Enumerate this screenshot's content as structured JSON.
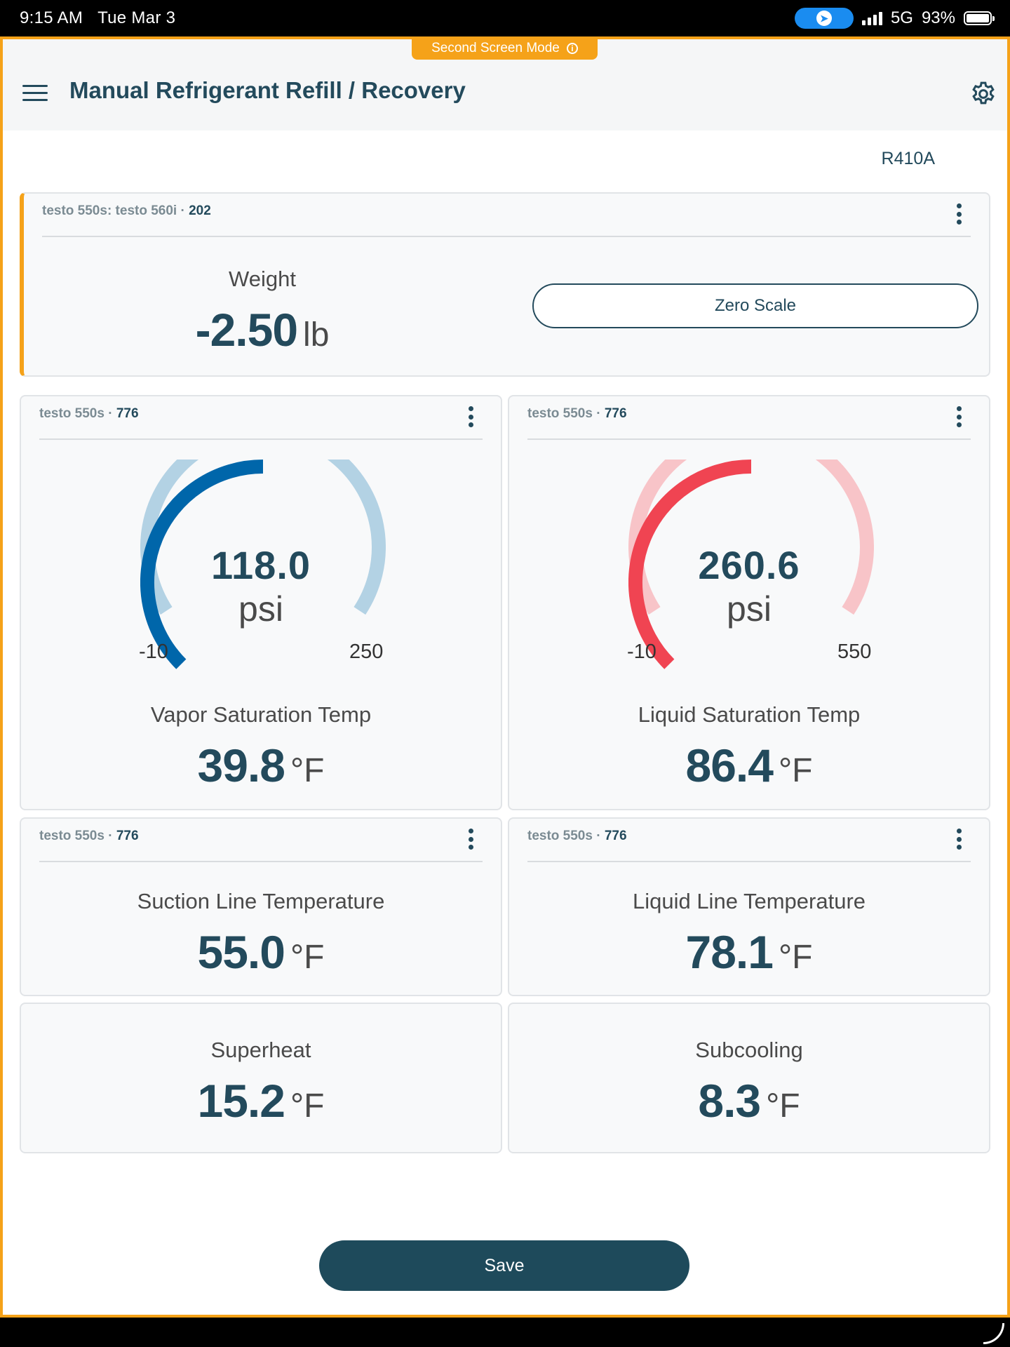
{
  "status_bar": {
    "time": "9:15 AM",
    "date": "Tue Mar 3",
    "network": "5G",
    "battery": "93%"
  },
  "banner": {
    "label": "Second Screen Mode",
    "info_icon": "info-icon"
  },
  "header": {
    "title": "Manual Refrigerant Refill / Recovery",
    "menu_icon": "menu-icon",
    "settings_icon": "gear-icon"
  },
  "refrigerant": "R410A",
  "colors": {
    "accent": "#f5a219",
    "primary": "#234a5c",
    "vapor_gauge": "#0066aa",
    "vapor_gauge_track": "#b3d2e4",
    "liquid_gauge": "#f04452",
    "liquid_gauge_track": "#f8c4c8"
  },
  "weight_card": {
    "device": "testo 550s: testo 560i",
    "serial": "202",
    "label": "Weight",
    "value": "-2.50",
    "unit": "lb",
    "zero_button": "Zero Scale"
  },
  "vapor_card": {
    "device": "testo 550s",
    "serial": "776",
    "gauge_value": "118.0",
    "gauge_unit": "psi",
    "min": "-10",
    "max": "250",
    "fraction": 0.5,
    "label": "Vapor Saturation Temp",
    "value": "39.8",
    "unit": "°F"
  },
  "liquid_card": {
    "device": "testo 550s",
    "serial": "776",
    "gauge_value": "260.6",
    "gauge_unit": "psi",
    "min": "-10",
    "max": "550",
    "fraction": 0.5,
    "label": "Liquid Saturation Temp",
    "value": "86.4",
    "unit": "°F"
  },
  "suction_card": {
    "device": "testo 550s",
    "serial": "776",
    "label": "Suction Line Temperature",
    "value": "55.0",
    "unit": "°F"
  },
  "liquid_line_card": {
    "device": "testo 550s",
    "serial": "776",
    "label": "Liquid Line Temperature",
    "value": "78.1",
    "unit": "°F"
  },
  "superheat_card": {
    "label": "Superheat",
    "value": "15.2",
    "unit": "°F"
  },
  "subcooling_card": {
    "label": "Subcooling",
    "value": "8.3",
    "unit": "°F"
  },
  "save_button": "Save"
}
